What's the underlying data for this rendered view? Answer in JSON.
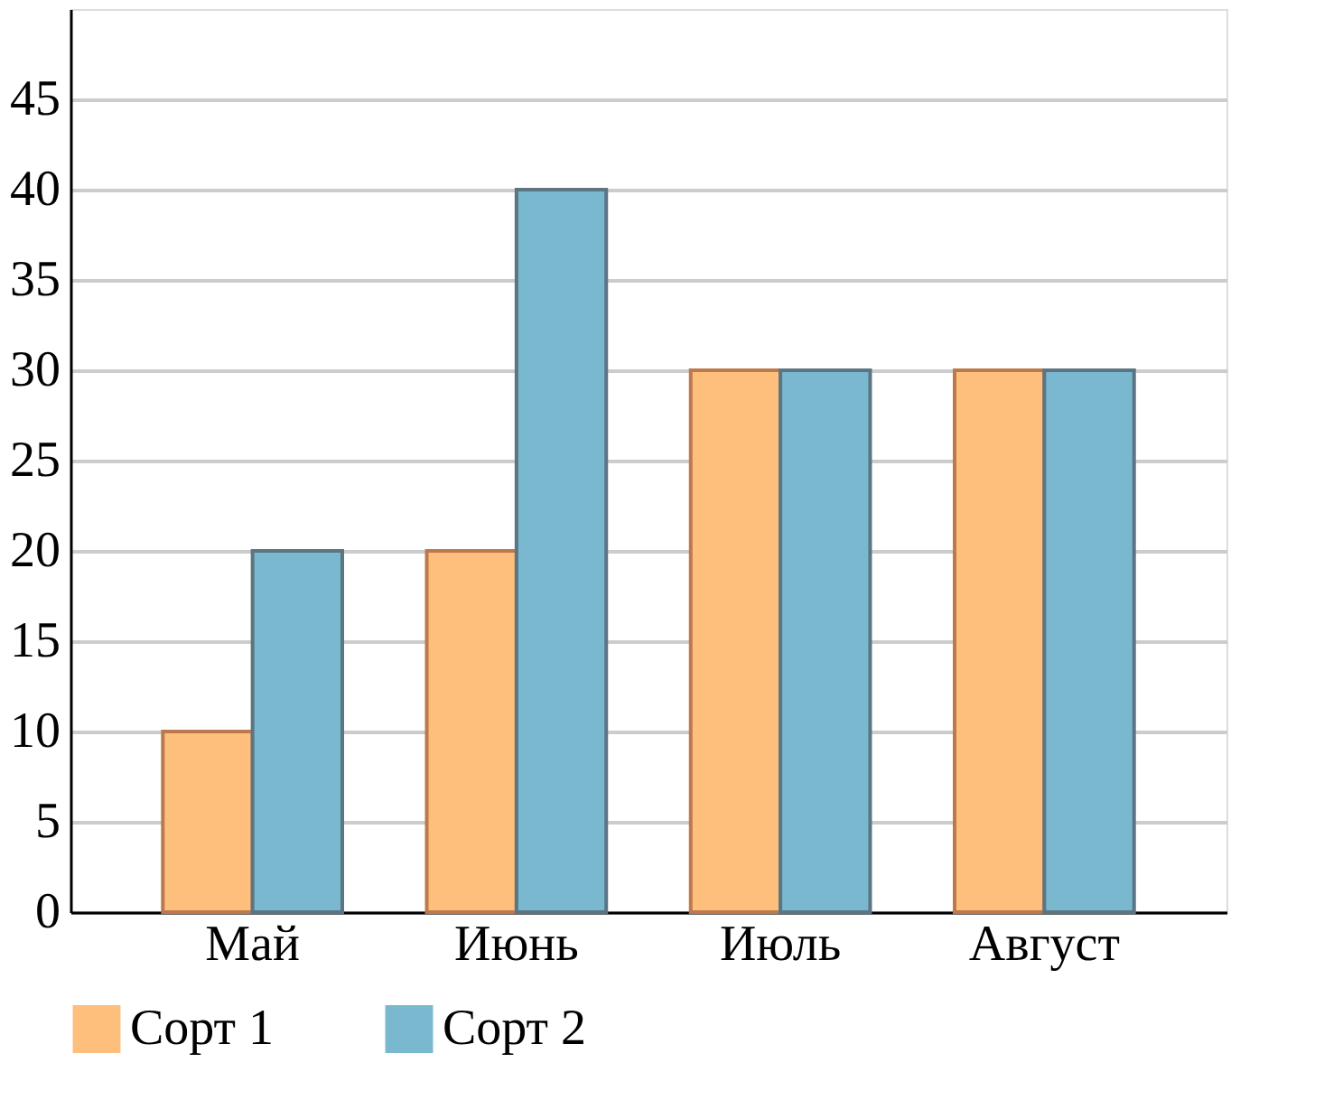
{
  "chart_data": {
    "type": "bar",
    "categories": [
      "Май",
      "Июнь",
      "Июль",
      "Август"
    ],
    "series": [
      {
        "name": "Сорт 1",
        "color": "#fdbf7b",
        "values": [
          10,
          20,
          30,
          30
        ]
      },
      {
        "name": "Сорт 2",
        "color": "#7ab8cf",
        "values": [
          20,
          40,
          30,
          30
        ]
      }
    ],
    "ylim": [
      0,
      50
    ],
    "yticks": [
      0,
      5,
      10,
      15,
      20,
      25,
      30,
      35,
      40,
      45
    ],
    "grid": "y",
    "legend": "bottom"
  }
}
